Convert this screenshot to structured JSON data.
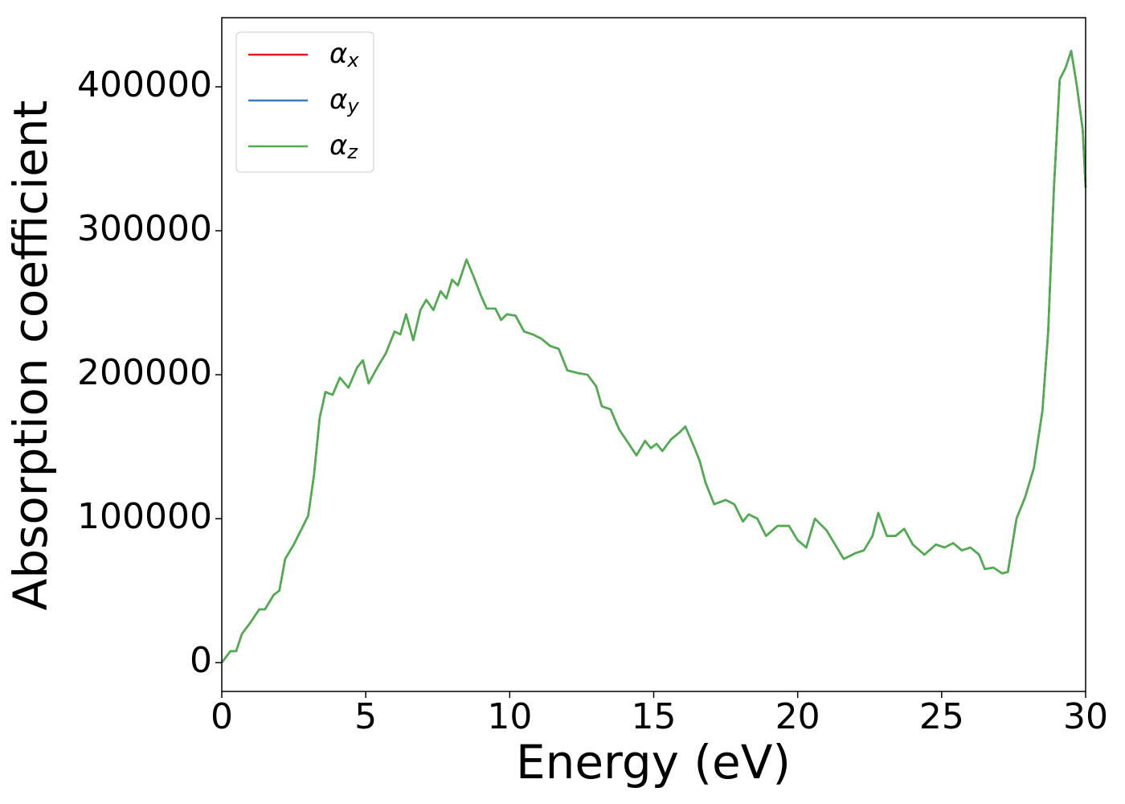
{
  "chart_data": {
    "type": "line",
    "xlabel": "Energy (eV)",
    "ylabel": "Absorption coefficient",
    "x": [
      0,
      0.3,
      0.5,
      0.7,
      1.0,
      1.3,
      1.5,
      1.8,
      2.0,
      2.2,
      2.5,
      2.7,
      3.0,
      3.2,
      3.4,
      3.6,
      3.85,
      4.1,
      4.4,
      4.7,
      4.9,
      5.1,
      5.4,
      5.7,
      6.0,
      6.2,
      6.4,
      6.65,
      6.9,
      7.1,
      7.35,
      7.6,
      7.8,
      8.0,
      8.2,
      8.5,
      8.75,
      9.0,
      9.2,
      9.5,
      9.7,
      9.9,
      10.2,
      10.5,
      10.8,
      11.1,
      11.4,
      11.7,
      12.0,
      12.4,
      12.7,
      13.0,
      13.2,
      13.5,
      13.8,
      14.1,
      14.4,
      14.7,
      14.9,
      15.1,
      15.3,
      15.6,
      15.9,
      16.1,
      16.4,
      16.6,
      16.8,
      17.1,
      17.5,
      17.8,
      18.1,
      18.3,
      18.6,
      18.9,
      19.3,
      19.7,
      20.0,
      20.3,
      20.6,
      21.0,
      21.3,
      21.6,
      22.0,
      22.3,
      22.6,
      22.8,
      23.1,
      23.4,
      23.7,
      24.0,
      24.4,
      24.8,
      25.1,
      25.4,
      25.7,
      26.0,
      26.3,
      26.5,
      26.8,
      27.1,
      27.3,
      27.6,
      27.9,
      28.2,
      28.5,
      28.7,
      28.9,
      29.1,
      29.3,
      29.5,
      29.7,
      29.9,
      30.0
    ],
    "series": [
      {
        "name": "αx",
        "color": "#e41a1c",
        "values": [
          0,
          8000,
          8000,
          20000,
          28000,
          37000,
          37000,
          47000,
          50000,
          72000,
          82000,
          90000,
          102000,
          130000,
          170000,
          188000,
          186000,
          198000,
          191000,
          205000,
          210000,
          194000,
          205000,
          215000,
          230000,
          228000,
          242000,
          224000,
          245000,
          252000,
          245000,
          258000,
          253000,
          266000,
          262000,
          280000,
          268000,
          255000,
          246000,
          246000,
          238000,
          242000,
          241000,
          230000,
          228000,
          225000,
          220000,
          218000,
          203000,
          201000,
          200000,
          192000,
          178000,
          176000,
          162000,
          153000,
          144000,
          154000,
          149000,
          152000,
          147000,
          155000,
          160000,
          164000,
          150000,
          140000,
          125000,
          110000,
          113000,
          110000,
          98000,
          103000,
          100000,
          88000,
          95000,
          95000,
          85000,
          80000,
          100000,
          92000,
          82000,
          72000,
          76000,
          78000,
          88000,
          104000,
          88000,
          88000,
          93000,
          82000,
          75000,
          82000,
          80000,
          83000,
          78000,
          80000,
          75000,
          65000,
          66000,
          62000,
          63000,
          100000,
          115000,
          135000,
          175000,
          230000,
          330000,
          405000,
          413000,
          425000,
          400000,
          370000,
          330000
        ]
      },
      {
        "name": "αy",
        "color": "#377eb8",
        "values": [
          0,
          8000,
          8000,
          20000,
          28000,
          37000,
          37000,
          47000,
          50000,
          72000,
          82000,
          90000,
          102000,
          130000,
          170000,
          188000,
          186000,
          198000,
          191000,
          205000,
          210000,
          194000,
          205000,
          215000,
          230000,
          228000,
          242000,
          224000,
          245000,
          252000,
          245000,
          258000,
          253000,
          266000,
          262000,
          280000,
          268000,
          255000,
          246000,
          246000,
          238000,
          242000,
          241000,
          230000,
          228000,
          225000,
          220000,
          218000,
          203000,
          201000,
          200000,
          192000,
          178000,
          176000,
          162000,
          153000,
          144000,
          154000,
          149000,
          152000,
          147000,
          155000,
          160000,
          164000,
          150000,
          140000,
          125000,
          110000,
          113000,
          110000,
          98000,
          103000,
          100000,
          88000,
          95000,
          95000,
          85000,
          80000,
          100000,
          92000,
          82000,
          72000,
          76000,
          78000,
          88000,
          104000,
          88000,
          88000,
          93000,
          82000,
          75000,
          82000,
          80000,
          83000,
          78000,
          80000,
          75000,
          65000,
          66000,
          62000,
          63000,
          100000,
          115000,
          135000,
          175000,
          230000,
          330000,
          405000,
          413000,
          425000,
          400000,
          370000,
          330000
        ]
      },
      {
        "name": "αz",
        "color": "#4daf4a",
        "values": [
          0,
          8000,
          8000,
          20000,
          28000,
          37000,
          37000,
          47000,
          50000,
          72000,
          82000,
          90000,
          102000,
          130000,
          170000,
          188000,
          186000,
          198000,
          191000,
          205000,
          210000,
          194000,
          205000,
          215000,
          230000,
          228000,
          242000,
          224000,
          245000,
          252000,
          245000,
          258000,
          253000,
          266000,
          262000,
          280000,
          268000,
          255000,
          246000,
          246000,
          238000,
          242000,
          241000,
          230000,
          228000,
          225000,
          220000,
          218000,
          203000,
          201000,
          200000,
          192000,
          178000,
          176000,
          162000,
          153000,
          144000,
          154000,
          149000,
          152000,
          147000,
          155000,
          160000,
          164000,
          150000,
          140000,
          125000,
          110000,
          113000,
          110000,
          98000,
          103000,
          100000,
          88000,
          95000,
          95000,
          85000,
          80000,
          100000,
          92000,
          82000,
          72000,
          76000,
          78000,
          88000,
          104000,
          88000,
          88000,
          93000,
          82000,
          75000,
          82000,
          80000,
          83000,
          78000,
          80000,
          75000,
          65000,
          66000,
          62000,
          63000,
          100000,
          115000,
          135000,
          175000,
          230000,
          330000,
          405000,
          413000,
          425000,
          400000,
          370000,
          330000
        ]
      }
    ],
    "xlim": [
      0,
      30
    ],
    "xticks": [
      0,
      5,
      10,
      15,
      20,
      25,
      30
    ],
    "ylim": [
      -20000,
      448000
    ],
    "yticks": [
      0,
      100000,
      200000,
      300000,
      400000
    ],
    "grid": false,
    "legend": "upper left"
  }
}
